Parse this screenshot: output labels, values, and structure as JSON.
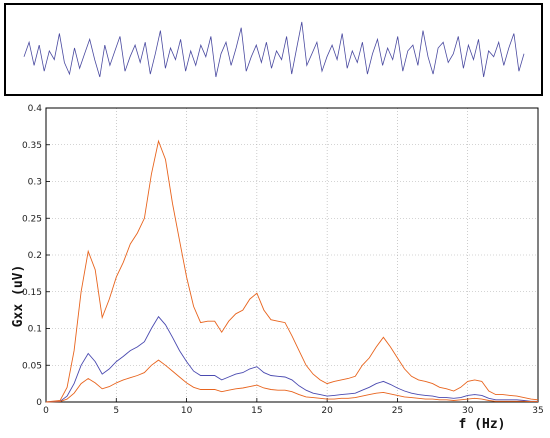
{
  "chart_data": [
    {
      "type": "line",
      "title": "",
      "xlabel": "",
      "ylabel": "",
      "axes_visible": false,
      "border": true,
      "color": "#4a4aa0",
      "description_of_series": "time-domain signal trace",
      "series": [
        {
          "values": [
            0.35,
            0.6,
            0.2,
            0.55,
            0.1,
            0.45,
            0.3,
            0.75,
            0.25,
            0.05,
            0.5,
            0.15,
            0.4,
            0.65,
            0.3,
            0.0,
            0.55,
            0.2,
            0.45,
            0.7,
            0.1,
            0.35,
            0.55,
            0.25,
            0.6,
            0.05,
            0.4,
            0.8,
            0.15,
            0.5,
            0.3,
            0.65,
            0.1,
            0.45,
            0.2,
            0.55,
            0.35,
            0.7,
            0.0,
            0.4,
            0.6,
            0.2,
            0.5,
            0.85,
            0.1,
            0.35,
            0.55,
            0.25,
            0.6,
            0.15,
            0.45,
            0.3,
            0.7,
            0.05,
            0.5,
            0.95,
            0.2,
            0.4,
            0.6,
            0.1,
            0.35,
            0.55,
            0.3,
            0.75,
            0.15,
            0.45,
            0.25,
            0.6,
            0.05,
            0.4,
            0.65,
            0.2,
            0.5,
            0.3,
            0.7,
            0.1,
            0.45,
            0.55,
            0.2,
            0.8,
            0.35,
            0.05,
            0.5,
            0.6,
            0.25,
            0.4,
            0.7,
            0.15,
            0.55,
            0.3,
            0.65,
            0.0,
            0.45,
            0.35,
            0.6,
            0.2,
            0.5,
            0.75,
            0.1,
            0.4
          ]
        }
      ]
    },
    {
      "type": "line",
      "title": "",
      "xlabel": "f (Hz)",
      "ylabel": "Gxx (uV)",
      "xlim": [
        0,
        35
      ],
      "ylim": [
        0,
        0.4
      ],
      "xticks": [
        "0",
        "5",
        "10",
        "15",
        "20",
        "25",
        "30",
        "35"
      ],
      "yticks": [
        "0",
        "0.05",
        "0.1",
        "0.15",
        "0.2",
        "0.25",
        "0.3",
        "0.35",
        "0.4"
      ],
      "grid": true,
      "series": [
        {
          "color": "#e8641e",
          "x": [
            0,
            1,
            1.5,
            2,
            2.5,
            3,
            3.5,
            4,
            4.5,
            5,
            5.5,
            6,
            6.5,
            7,
            7.5,
            8,
            8.5,
            9,
            9.5,
            10,
            10.5,
            11,
            11.5,
            12,
            12.5,
            13,
            13.5,
            14,
            14.5,
            15,
            15.5,
            16,
            16.5,
            17,
            17.5,
            18,
            18.5,
            19,
            19.5,
            20,
            20.5,
            21,
            21.5,
            22,
            22.5,
            23,
            23.5,
            24,
            24.5,
            25,
            25.5,
            26,
            26.5,
            27,
            27.5,
            28,
            28.5,
            29,
            29.5,
            30,
            30.5,
            31,
            31.5,
            32,
            32.5,
            33,
            33.5,
            34,
            34.5,
            35
          ],
          "y": [
            0,
            0.002,
            0.02,
            0.07,
            0.15,
            0.205,
            0.18,
            0.115,
            0.14,
            0.17,
            0.19,
            0.215,
            0.23,
            0.25,
            0.31,
            0.355,
            0.33,
            0.27,
            0.22,
            0.17,
            0.13,
            0.108,
            0.11,
            0.11,
            0.095,
            0.11,
            0.12,
            0.125,
            0.14,
            0.148,
            0.125,
            0.112,
            0.11,
            0.108,
            0.09,
            0.07,
            0.05,
            0.038,
            0.03,
            0.025,
            0.028,
            0.03,
            0.032,
            0.035,
            0.05,
            0.06,
            0.075,
            0.088,
            0.075,
            0.06,
            0.045,
            0.035,
            0.03,
            0.028,
            0.025,
            0.02,
            0.018,
            0.015,
            0.02,
            0.028,
            0.03,
            0.028,
            0.015,
            0.01,
            0.01,
            0.009,
            0.008,
            0.006,
            0.004,
            0.003
          ]
        },
        {
          "color": "#4a4ab0",
          "x": [
            0,
            1,
            1.5,
            2,
            2.5,
            3,
            3.5,
            4,
            4.5,
            5,
            5.5,
            6,
            6.5,
            7,
            7.5,
            8,
            8.5,
            9,
            9.5,
            10,
            10.5,
            11,
            11.5,
            12,
            12.5,
            13,
            13.5,
            14,
            14.5,
            15,
            15.5,
            16,
            16.5,
            17,
            17.5,
            18,
            18.5,
            19,
            19.5,
            20,
            20.5,
            21,
            21.5,
            22,
            22.5,
            23,
            23.5,
            24,
            24.5,
            25,
            25.5,
            26,
            26.5,
            27,
            27.5,
            28,
            28.5,
            29,
            29.5,
            30,
            30.5,
            31,
            31.5,
            32,
            32.5,
            33,
            33.5,
            34,
            34.5,
            35
          ],
          "y": [
            0,
            0.001,
            0.008,
            0.025,
            0.05,
            0.066,
            0.055,
            0.038,
            0.045,
            0.055,
            0.062,
            0.07,
            0.075,
            0.082,
            0.1,
            0.116,
            0.105,
            0.088,
            0.07,
            0.055,
            0.042,
            0.036,
            0.036,
            0.036,
            0.03,
            0.034,
            0.038,
            0.04,
            0.045,
            0.048,
            0.04,
            0.036,
            0.035,
            0.034,
            0.03,
            0.022,
            0.016,
            0.012,
            0.01,
            0.008,
            0.009,
            0.01,
            0.011,
            0.012,
            0.016,
            0.02,
            0.025,
            0.028,
            0.024,
            0.019,
            0.015,
            0.012,
            0.01,
            0.009,
            0.008,
            0.006,
            0.006,
            0.005,
            0.006,
            0.009,
            0.01,
            0.009,
            0.005,
            0.003,
            0.003,
            0.003,
            0.003,
            0.002,
            0.001,
            0.001
          ]
        },
        {
          "color": "#e8641e",
          "x": [
            0,
            1,
            1.5,
            2,
            2.5,
            3,
            3.5,
            4,
            4.5,
            5,
            5.5,
            6,
            6.5,
            7,
            7.5,
            8,
            8.5,
            9,
            9.5,
            10,
            10.5,
            11,
            11.5,
            12,
            12.5,
            13,
            13.5,
            14,
            14.5,
            15,
            15.5,
            16,
            16.5,
            17,
            17.5,
            18,
            18.5,
            19,
            19.5,
            20,
            20.5,
            21,
            21.5,
            22,
            22.5,
            23,
            23.5,
            24,
            24.5,
            25,
            25.5,
            26,
            26.5,
            27,
            27.5,
            28,
            28.5,
            29,
            29.5,
            30,
            30.5,
            31,
            31.5,
            32,
            32.5,
            33,
            33.5,
            34,
            34.5,
            35
          ],
          "y": [
            0,
            0.0005,
            0.004,
            0.012,
            0.025,
            0.032,
            0.026,
            0.018,
            0.021,
            0.026,
            0.03,
            0.033,
            0.036,
            0.04,
            0.05,
            0.057,
            0.05,
            0.042,
            0.034,
            0.026,
            0.02,
            0.017,
            0.017,
            0.017,
            0.014,
            0.016,
            0.018,
            0.019,
            0.021,
            0.023,
            0.019,
            0.017,
            0.016,
            0.016,
            0.014,
            0.01,
            0.007,
            0.006,
            0.005,
            0.004,
            0.004,
            0.005,
            0.005,
            0.006,
            0.008,
            0.01,
            0.012,
            0.013,
            0.011,
            0.009,
            0.007,
            0.006,
            0.005,
            0.004,
            0.004,
            0.003,
            0.003,
            0.002,
            0.003,
            0.004,
            0.005,
            0.004,
            0.002,
            0.001,
            0.001,
            0.001,
            0.001,
            0.001,
            0.0005,
            0.0005
          ]
        }
      ]
    }
  ]
}
